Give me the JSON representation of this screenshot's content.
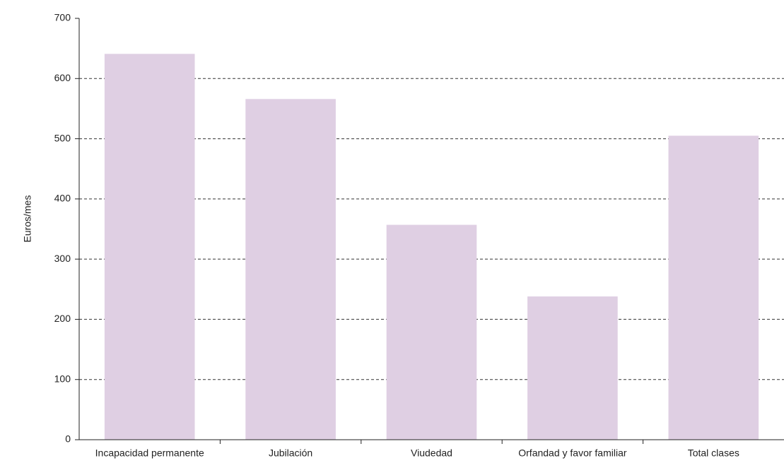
{
  "chart_data": {
    "type": "bar",
    "y_label": "Euros/mes",
    "categories": [
      "Incapacidad permanente",
      "Jubilación",
      "Viudedad",
      "Orfandad y favor familiar",
      "Total clases"
    ],
    "values": [
      641,
      566,
      357,
      238,
      505
    ],
    "color": "#dfcfe3",
    "ylim": [
      0,
      700
    ],
    "yticks": [
      0,
      100,
      200,
      300,
      400,
      500,
      600,
      700
    ],
    "grid": true
  }
}
